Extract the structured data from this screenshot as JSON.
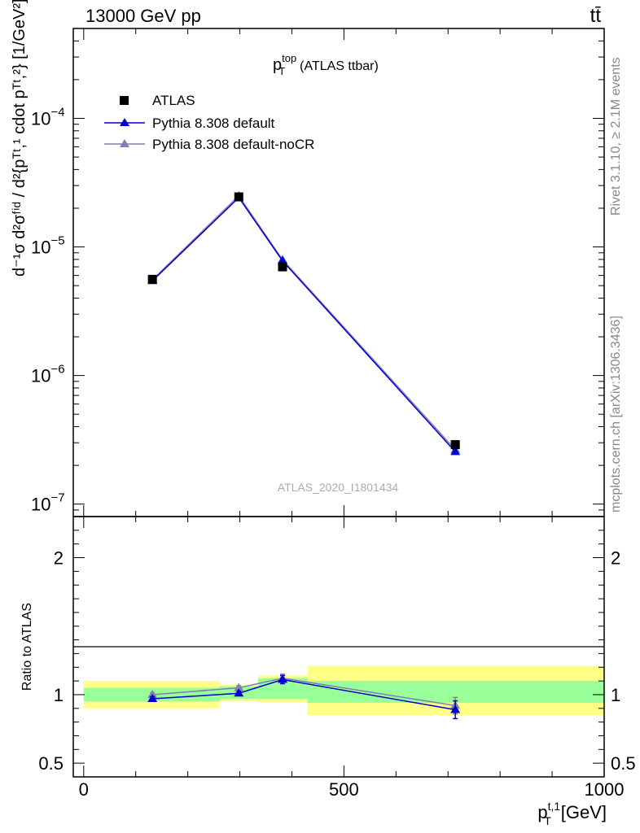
{
  "header": {
    "energy_label": "13000 GeV pp",
    "process_label": "tt̄"
  },
  "side_labels": {
    "rivet": "Rivet 3.1.10, ≥ 2.1M events",
    "mcplots": "mcplots.cern.ch [arXiv:1306.3436]"
  },
  "watermark": "ATLAS_2020_I1801434",
  "colors": {
    "data": "#000000",
    "pythia_default": "#0000cc",
    "pythia_nocr": "#7f7fb2",
    "band_inner": "#99ff99",
    "band_outer": "#ffff88"
  },
  "chart_data": [
    {
      "type": "line",
      "panel": "main",
      "title": "p_T^top (ATLAS ttbar)",
      "title_parts": {
        "base": "p",
        "sup": "top",
        "sub": "T",
        "rest": "(ATLAS ttbar)"
      },
      "ylabel": "d(1/σ)d²σ^fid / d²{p_T^t,1 cdot p_T^t,2} [1/GeV²]",
      "ylabel_text": "d⁻¹σ d²σᶠⁱᵈ / d²{pᵀᵗ,¹ cdot pᵀᵗ,²} [1/GeV²]",
      "yscale": "log",
      "ylim": [
        8e-08,
        0.0005
      ],
      "xlim": [
        -20,
        1000
      ],
      "yticks": [
        {
          "v": 1e-07,
          "label": "10",
          "exp": "−7"
        },
        {
          "v": 1e-06,
          "label": "10",
          "exp": "−6"
        },
        {
          "v": 1e-05,
          "label": "10",
          "exp": "−5"
        },
        {
          "v": 0.0001,
          "label": "10",
          "exp": "−4"
        }
      ],
      "legend_position": "top-left",
      "series": [
        {
          "name": "ATLAS",
          "marker": "square",
          "x": [
            132,
            298,
            382,
            714
          ],
          "y": [
            5.6e-06,
            2.45e-05,
            7e-06,
            2.9e-07
          ]
        },
        {
          "name": "Pythia 8.308 default",
          "marker": "triangle",
          "x": [
            132,
            298,
            382,
            714
          ],
          "y": [
            5.45e-06,
            2.42e-05,
            7.8e-06,
            2.55e-07
          ]
        },
        {
          "name": "Pythia 8.308 default-noCR",
          "marker": "triangle",
          "x": [
            132,
            298,
            382,
            714
          ],
          "y": [
            5.55e-06,
            2.5e-05,
            7.95e-06,
            2.65e-07
          ]
        }
      ]
    },
    {
      "type": "line",
      "panel": "ratio",
      "ylabel": "Ratio to ATLAS",
      "xlabel": "p_T^t,1 [GeV]",
      "xlabel_parts": {
        "base": "p",
        "sup": "t,1",
        "sub": "T",
        "rest": "[GeV]"
      },
      "ylim": [
        0.4,
        2.3
      ],
      "xlim": [
        -20,
        1000
      ],
      "xticks": [
        0,
        500,
        1000
      ],
      "yticks": [
        {
          "v": 0.5,
          "label": "0.5"
        },
        {
          "v": 1,
          "label": "1"
        },
        {
          "v": 2,
          "label": "2"
        }
      ],
      "bands": [
        {
          "x0": 0,
          "x1": 260,
          "inner": [
            0.95,
            1.05
          ],
          "outer": [
            0.9,
            1.1
          ]
        },
        {
          "x0": 260,
          "x1": 335,
          "inner": [
            0.97,
            1.06
          ],
          "outer": [
            0.95,
            1.07
          ]
        },
        {
          "x0": 335,
          "x1": 430,
          "inner": [
            0.97,
            1.12
          ],
          "outer": [
            0.94,
            1.14
          ]
        },
        {
          "x0": 430,
          "x1": 1000,
          "inner": [
            0.94,
            1.1
          ],
          "outer": [
            0.85,
            1.21
          ]
        }
      ],
      "series": [
        {
          "name": "Pythia 8.308 default",
          "x": [
            132,
            298,
            382,
            714
          ],
          "y": [
            0.97,
            1.01,
            1.11,
            0.89
          ],
          "err": [
            0.015,
            0.015,
            0.03,
            0.065
          ]
        },
        {
          "name": "Pythia 8.308 default-noCR",
          "x": [
            132,
            298,
            382,
            714
          ],
          "y": [
            1.0,
            1.05,
            1.12,
            0.92
          ],
          "err": [
            0.015,
            0.015,
            0.03,
            0.06
          ]
        }
      ]
    }
  ]
}
